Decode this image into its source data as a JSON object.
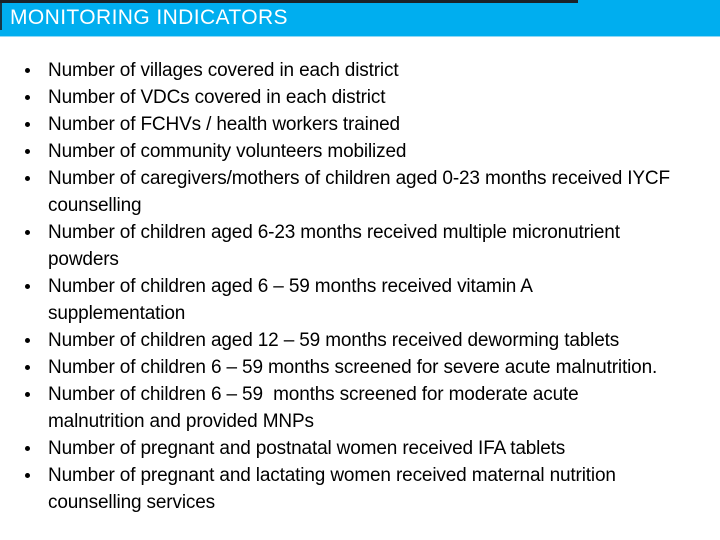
{
  "slide": {
    "title": "MONITORING INDICATORS",
    "colors": {
      "header_bg": "#00AEEF",
      "title_text": "#FFFFFF",
      "body_text": "#000000",
      "top_strip": "#1B2228",
      "background": "#FFFFFF"
    },
    "bullets": [
      {
        "lines": [
          "Number of villages covered in each district"
        ]
      },
      {
        "lines": [
          "Number of VDCs covered in each district"
        ]
      },
      {
        "lines": [
          "Number of FCHVs / health workers trained"
        ]
      },
      {
        "lines": [
          "Number of community volunteers mobilized"
        ]
      },
      {
        "lines": [
          "Number of caregivers/mothers of children aged 0-23 months received IYCF",
          "counselling"
        ]
      },
      {
        "lines": [
          "Number of children aged 6-23 months received multiple micronutrient",
          "powders"
        ]
      },
      {
        "lines": [
          "Number of children aged 6 – 59 months received vitamin A",
          "supplementation"
        ]
      },
      {
        "lines": [
          "Number of children aged 12 – 59 months received deworming tablets"
        ]
      },
      {
        "lines": [
          "Number of children 6 – 59 months screened for severe acute malnutrition."
        ]
      },
      {
        "lines": [
          "Number of children 6 – 59  months screened for moderate acute",
          "malnutrition and provided MNPs"
        ]
      },
      {
        "lines": [
          "Number of pregnant and postnatal women received IFA tablets"
        ]
      },
      {
        "lines": [
          "Number of pregnant and lactating women received maternal nutrition",
          "counselling services"
        ]
      }
    ]
  }
}
